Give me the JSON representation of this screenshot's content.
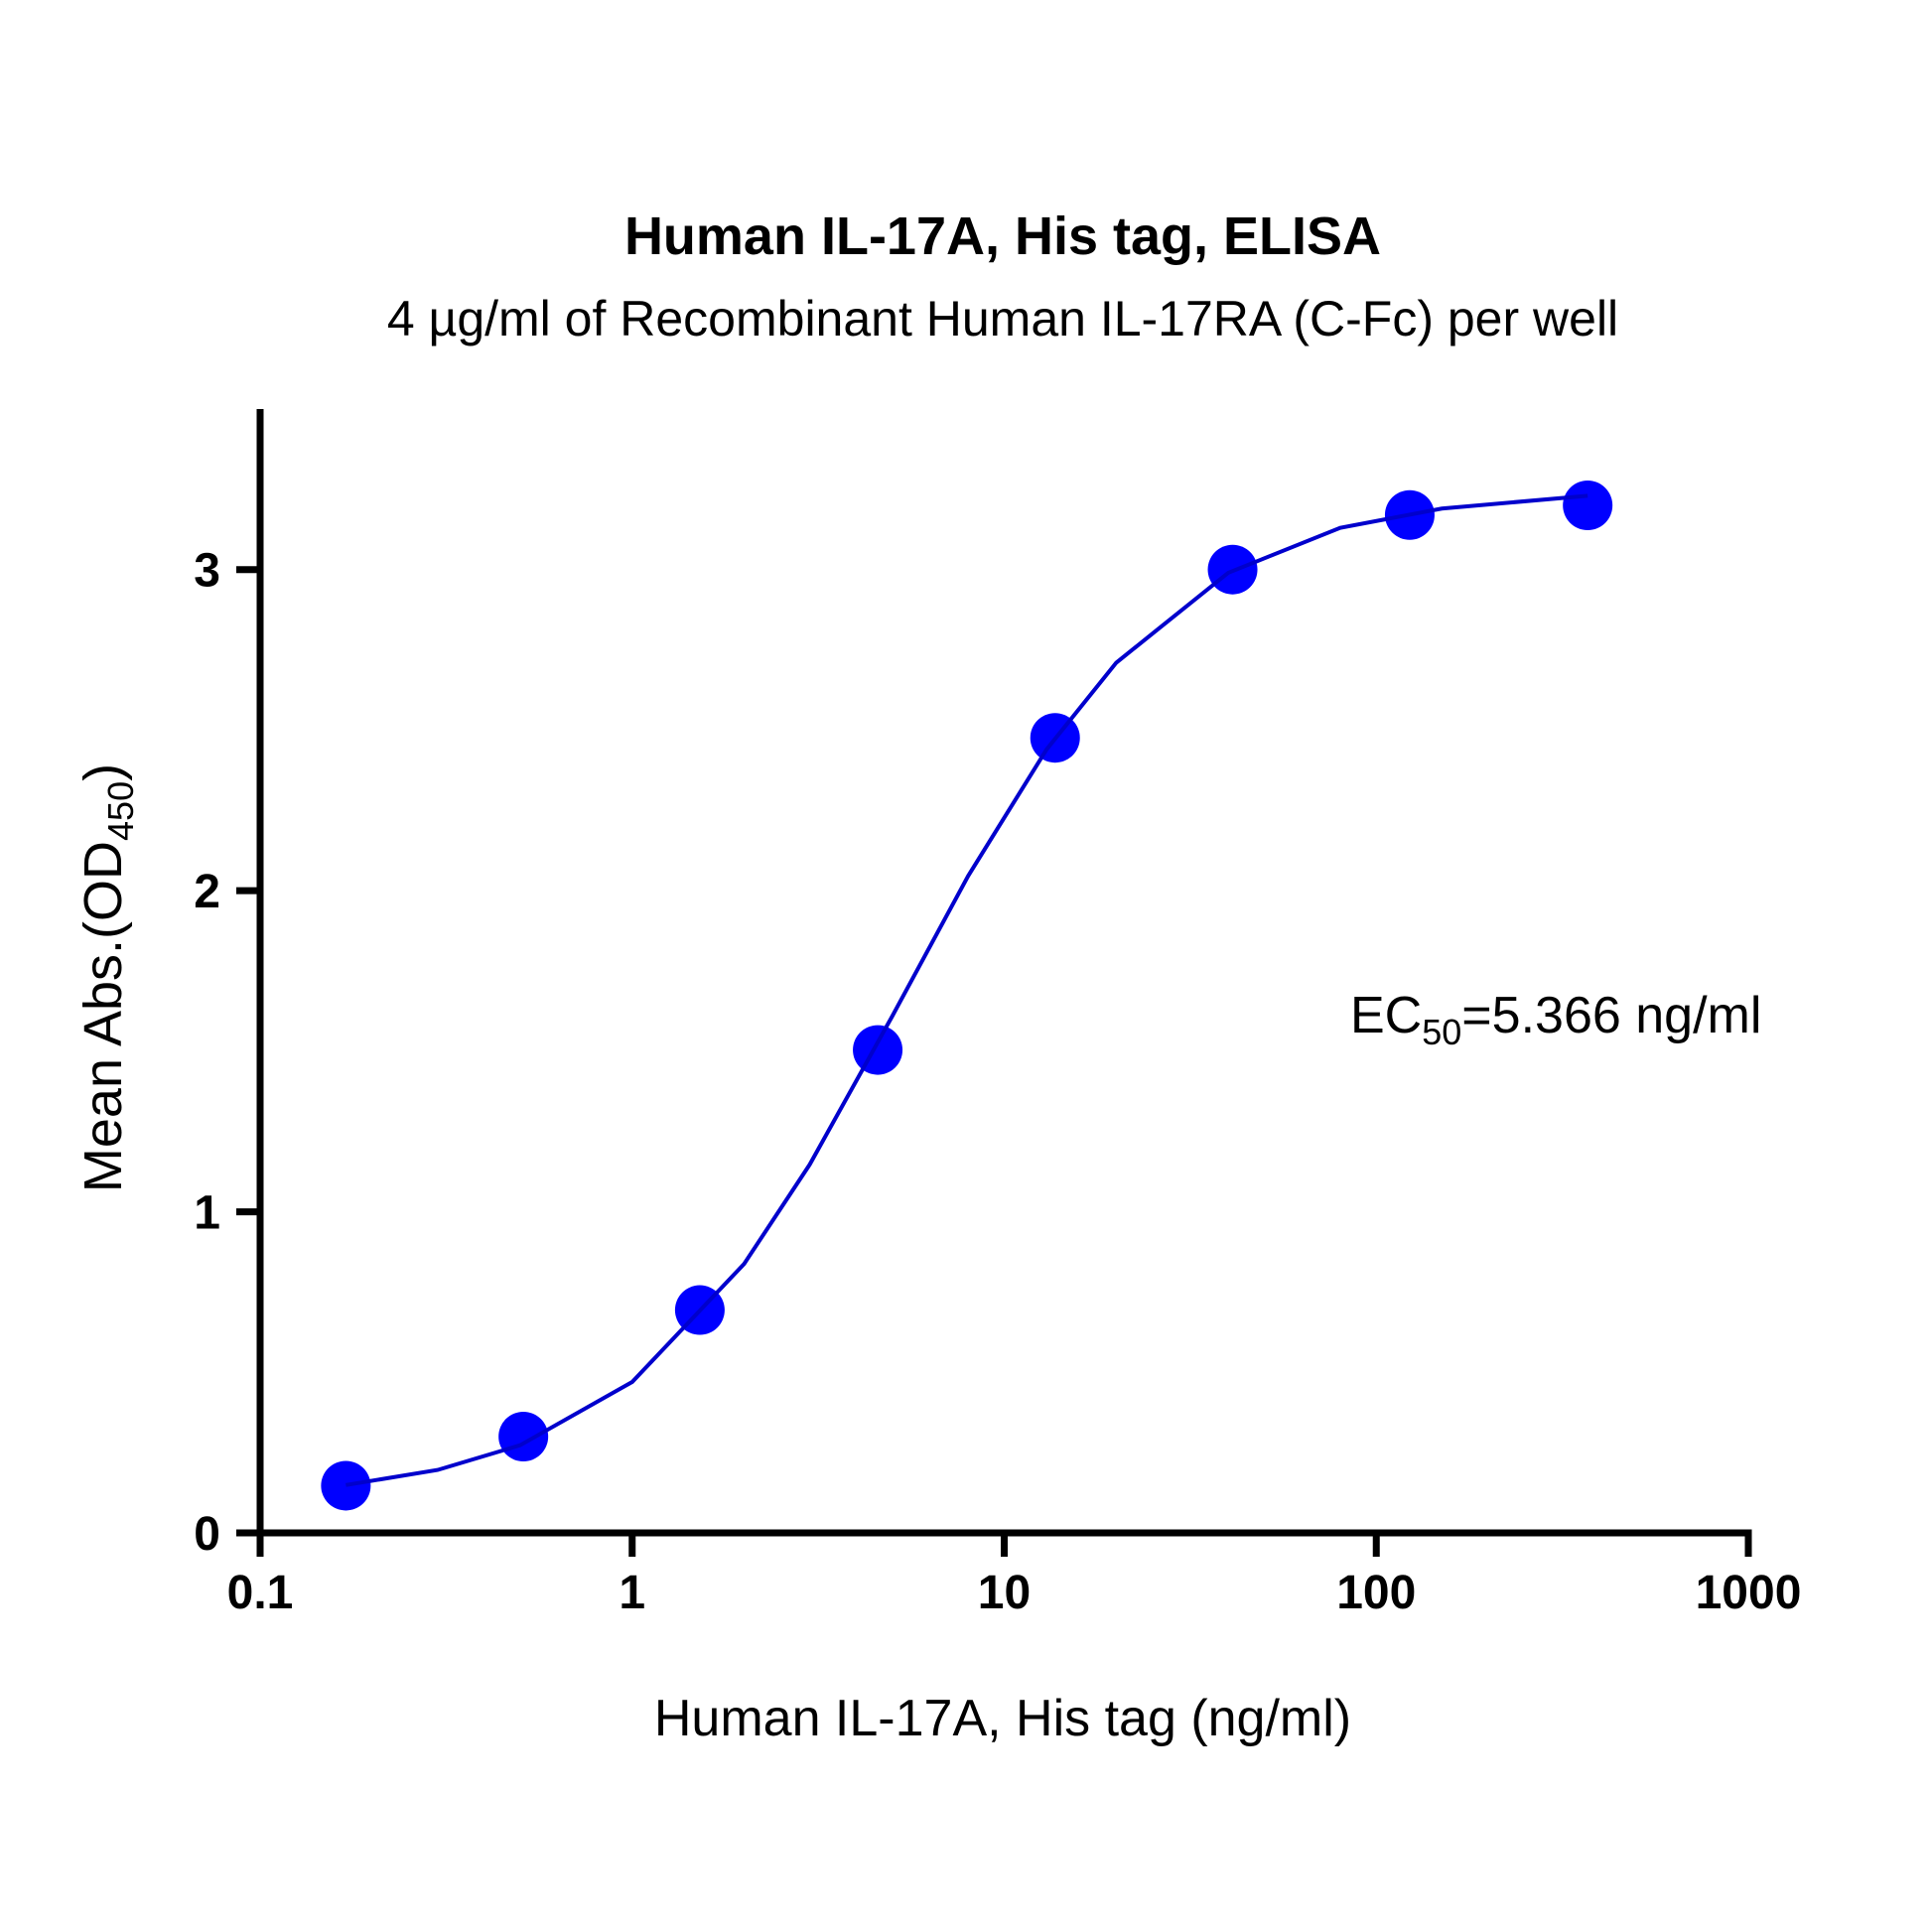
{
  "chart_data": {
    "type": "scatter",
    "title": "Human IL-17A, His tag, ELISA",
    "subtitle": "4 µg/ml of Recombinant Human IL-17RA (C-Fc) per well",
    "xlabel": "Human IL-17A, His tag (ng/ml)",
    "ylabel": [
      "Mean Abs.(OD",
      "450",
      ")"
    ],
    "annotation": [
      "EC",
      "50",
      "=5.366 ng/ml"
    ],
    "xscale": "log",
    "xlim": [
      0.1,
      1000
    ],
    "xticks": [
      0.1,
      1,
      10,
      100,
      1000
    ],
    "ylim": [
      0,
      3.5
    ],
    "yticks": [
      0,
      1,
      2,
      3
    ],
    "series": [
      {
        "color": "#0000ff",
        "marker": true,
        "line": false,
        "x": [
          0.17,
          0.51,
          1.52,
          4.57,
          13.7,
          41.1,
          123,
          370
        ],
        "values": [
          0.147,
          0.3,
          0.694,
          1.504,
          2.476,
          3.0,
          3.17,
          3.2
        ]
      },
      {
        "color": "#0000cc",
        "marker": false,
        "line": true,
        "x": [
          0.17,
          0.3,
          0.5,
          1,
          2,
          3,
          5,
          8,
          13,
          20,
          40,
          80,
          150,
          370
        ],
        "values": [
          0.149,
          0.196,
          0.273,
          0.47,
          0.838,
          1.147,
          1.609,
          2.046,
          2.44,
          2.71,
          2.99,
          3.13,
          3.19,
          3.23
        ]
      }
    ]
  }
}
